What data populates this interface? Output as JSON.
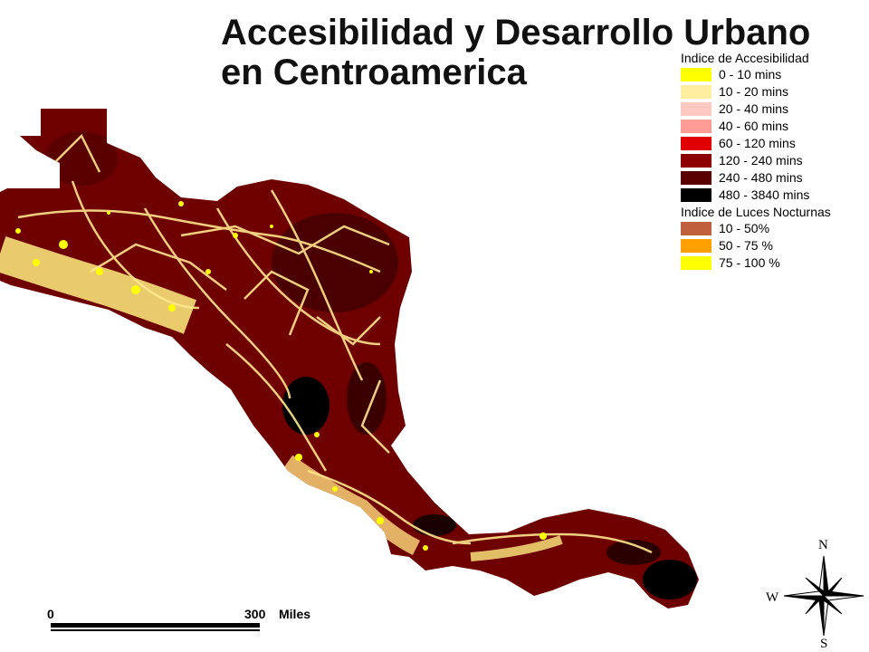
{
  "title": {
    "line1": "Accesibilidad y Desarrollo Urbano",
    "line2": "en Centroamerica"
  },
  "legend": {
    "accessibility_title": "Indice de Accesibilidad",
    "accessibility_classes": [
      {
        "label": "0 - 10 mins",
        "color": "#ffff00"
      },
      {
        "label": "10 - 20 mins",
        "color": "#ffeea0"
      },
      {
        "label": "20 - 40 mins",
        "color": "#ffc8c0"
      },
      {
        "label": "40 - 60 mins",
        "color": "#ff9c96"
      },
      {
        "label": "60 - 120 mins",
        "color": "#e00000"
      },
      {
        "label": "120 - 240 mins",
        "color": "#8c0000"
      },
      {
        "label": "240 - 480 mins",
        "color": "#5a0000"
      },
      {
        "label": "480 - 3840 mins",
        "color": "#000000"
      }
    ],
    "lights_title": "Indice de Luces Nocturnas",
    "lights_classes": [
      {
        "label": "10 - 50%",
        "color": "#c0603c"
      },
      {
        "label": "50 - 75 %",
        "color": "#ffa000"
      },
      {
        "label": "75 - 100 %",
        "color": "#ffff00"
      }
    ]
  },
  "scale": {
    "zero": "0",
    "max": "300",
    "unit": "Miles"
  },
  "compass": {
    "north": "N",
    "west": "W",
    "south": "S"
  },
  "colors": {
    "land_base": "#6e0000",
    "road_network": "#ffe68c",
    "urban_lights": "#ffff00",
    "remote_areas": "#000000"
  }
}
